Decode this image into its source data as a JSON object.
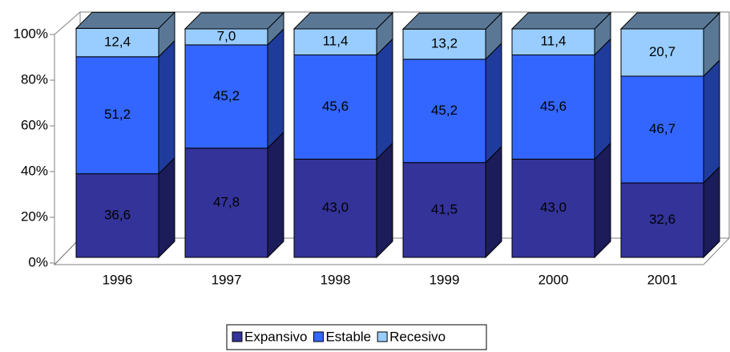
{
  "chart_data": {
    "type": "stacked-bar-3d",
    "categories": [
      "1996",
      "1997",
      "1998",
      "1999",
      "2000",
      "2001"
    ],
    "series": [
      {
        "name": "Expansivo",
        "color": "#333399",
        "side": "#1c1c5a",
        "values": [
          36.6,
          47.8,
          43.0,
          41.5,
          43.0,
          32.6
        ],
        "value_labels": [
          "36,6",
          "47,8",
          "43,0",
          "41,5",
          "43,0",
          "32,6"
        ]
      },
      {
        "name": "Estable",
        "color": "#3366ff",
        "side": "#1f3c9c",
        "values": [
          51.2,
          45.2,
          45.6,
          45.2,
          45.6,
          46.7
        ],
        "value_labels": [
          "51,2",
          "45,2",
          "45,6",
          "45,2",
          "45,6",
          "46,7"
        ]
      },
      {
        "name": "Recesivo",
        "color": "#99ccff",
        "side": "#5a7896",
        "values": [
          12.4,
          7.0,
          11.4,
          13.2,
          11.4,
          20.7
        ],
        "value_labels": [
          "12,4",
          "7,0",
          "11,4",
          "13,2",
          "11,4",
          "20,7"
        ]
      }
    ],
    "ylim": [
      0,
      100
    ],
    "yticks": [
      {
        "value": 0,
        "label": "0%"
      },
      {
        "value": 20,
        "label": "20%"
      },
      {
        "value": 40,
        "label": "40%"
      },
      {
        "value": 60,
        "label": "60%"
      },
      {
        "value": 80,
        "label": "80%"
      },
      {
        "value": 100,
        "label": "100%"
      }
    ],
    "legend": "bottom"
  }
}
